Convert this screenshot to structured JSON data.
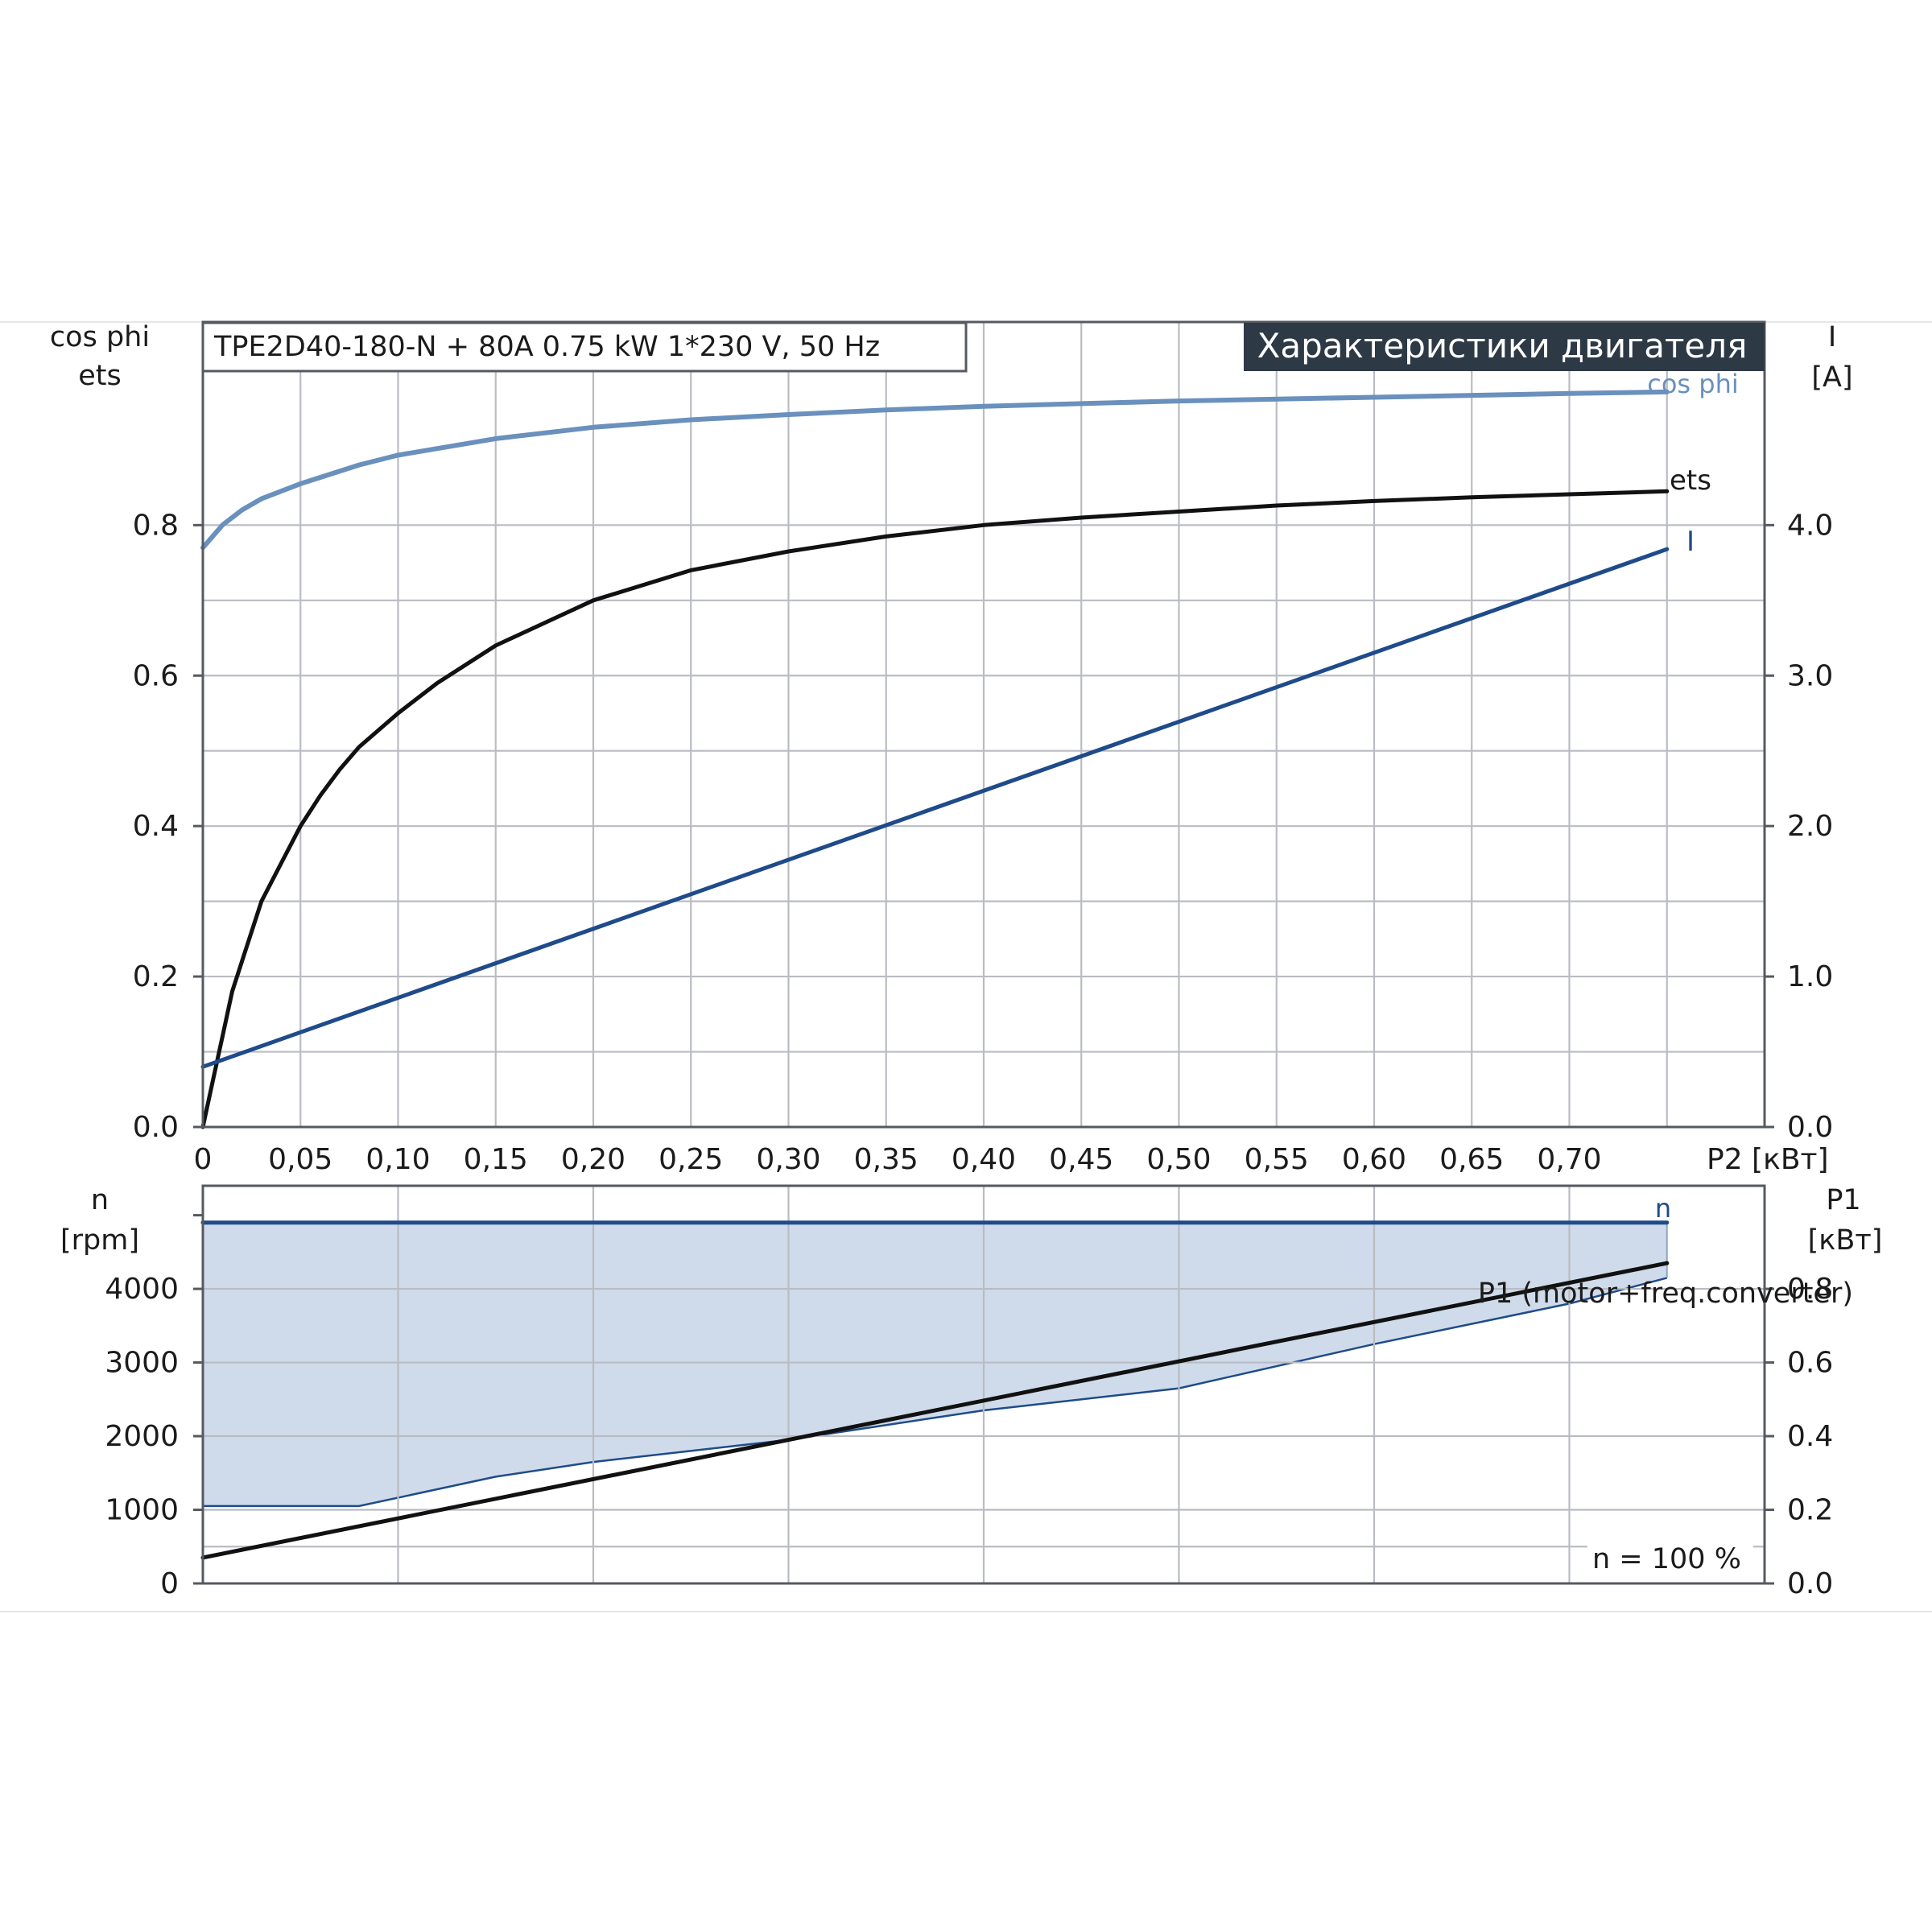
{
  "chart_data": [
    {
      "type": "line",
      "title": "TPE2D40-180-N + 80A   0.75 kW   1*230 V, 50 Hz",
      "badge": "Характеристики двигателя",
      "xlabel": "P2 [кВт]",
      "x_ticks": [
        "0",
        "0,05",
        "0,10",
        "0,15",
        "0,20",
        "0,25",
        "0,30",
        "0,35",
        "0,40",
        "0,45",
        "0,50",
        "0,55",
        "0,60",
        "0,65",
        "0,70"
      ],
      "xlim": [
        0,
        0.8
      ],
      "y_left_label": [
        "cos phi",
        "ets"
      ],
      "y_left_ticks": [
        "0.0",
        "0.2",
        "0.4",
        "0.6",
        "0.8"
      ],
      "y_left_lim": [
        0,
        1.07
      ],
      "y_right_label": [
        "I",
        "[A]"
      ],
      "y_right_ticks": [
        "0.0",
        "1.0",
        "2.0",
        "3.0",
        "4.0"
      ],
      "y_right_lim": [
        0,
        5.35
      ],
      "grid": true,
      "series": [
        {
          "name": "cos phi",
          "axis": "left",
          "color": "#6a90bd",
          "x": [
            0,
            0.01,
            0.02,
            0.03,
            0.05,
            0.08,
            0.1,
            0.15,
            0.2,
            0.25,
            0.3,
            0.35,
            0.4,
            0.5,
            0.6,
            0.7,
            0.75
          ],
          "y": [
            0.77,
            0.8,
            0.82,
            0.835,
            0.855,
            0.88,
            0.893,
            0.915,
            0.93,
            0.94,
            0.947,
            0.953,
            0.958,
            0.965,
            0.97,
            0.975,
            0.977
          ]
        },
        {
          "name": "ets",
          "axis": "left",
          "color": "#111111",
          "x": [
            0,
            0.005,
            0.01,
            0.015,
            0.02,
            0.03,
            0.04,
            0.05,
            0.06,
            0.07,
            0.08,
            0.1,
            0.12,
            0.15,
            0.2,
            0.25,
            0.3,
            0.35,
            0.4,
            0.45,
            0.5,
            0.55,
            0.6,
            0.65,
            0.7,
            0.75
          ],
          "y": [
            0,
            0.06,
            0.12,
            0.18,
            0.22,
            0.3,
            0.35,
            0.4,
            0.44,
            0.475,
            0.505,
            0.55,
            0.59,
            0.64,
            0.7,
            0.74,
            0.765,
            0.785,
            0.8,
            0.81,
            0.818,
            0.826,
            0.832,
            0.837,
            0.841,
            0.845
          ]
        },
        {
          "name": "I",
          "axis": "right",
          "color": "#1f4b8a",
          "x": [
            0,
            0.75
          ],
          "y": [
            0.4,
            3.84
          ]
        }
      ]
    },
    {
      "type": "line",
      "x_ticks": [],
      "xlim": [
        0,
        0.8
      ],
      "y_left_label": [
        "n",
        "[rpm]"
      ],
      "y_left_ticks": [
        "0",
        "1000",
        "2000",
        "3000",
        "4000"
      ],
      "y_left_lim": [
        0,
        5400
      ],
      "y_right_label": [
        "P1",
        "[кВт]"
      ],
      "y_right_ticks": [
        "0.0",
        "0.2",
        "0.4",
        "0.6",
        "0.8"
      ],
      "y_right_lim": [
        0,
        1.08
      ],
      "annotation": "n = 100 %",
      "grid": true,
      "series": [
        {
          "name": "n",
          "axis": "left",
          "color": "#1f4b8a",
          "x": [
            0,
            0.75
          ],
          "y": [
            4900,
            4900
          ]
        },
        {
          "name": "P1 (motor+freq.converter)",
          "axis": "right",
          "color": "#111111",
          "x": [
            0,
            0.75
          ],
          "y": [
            0.07,
            0.87
          ]
        }
      ],
      "shaded_area": {
        "color": "#cfdbea",
        "edge_color": "#1f4b8a",
        "x": [
          0,
          0.08,
          0.15,
          0.2,
          0.3,
          0.4,
          0.5,
          0.6,
          0.7,
          0.75
        ],
        "y_lower": [
          1050,
          1050,
          1450,
          1650,
          1950,
          2350,
          2650,
          3250,
          3800,
          4150
        ],
        "y_upper": 4900
      }
    }
  ]
}
